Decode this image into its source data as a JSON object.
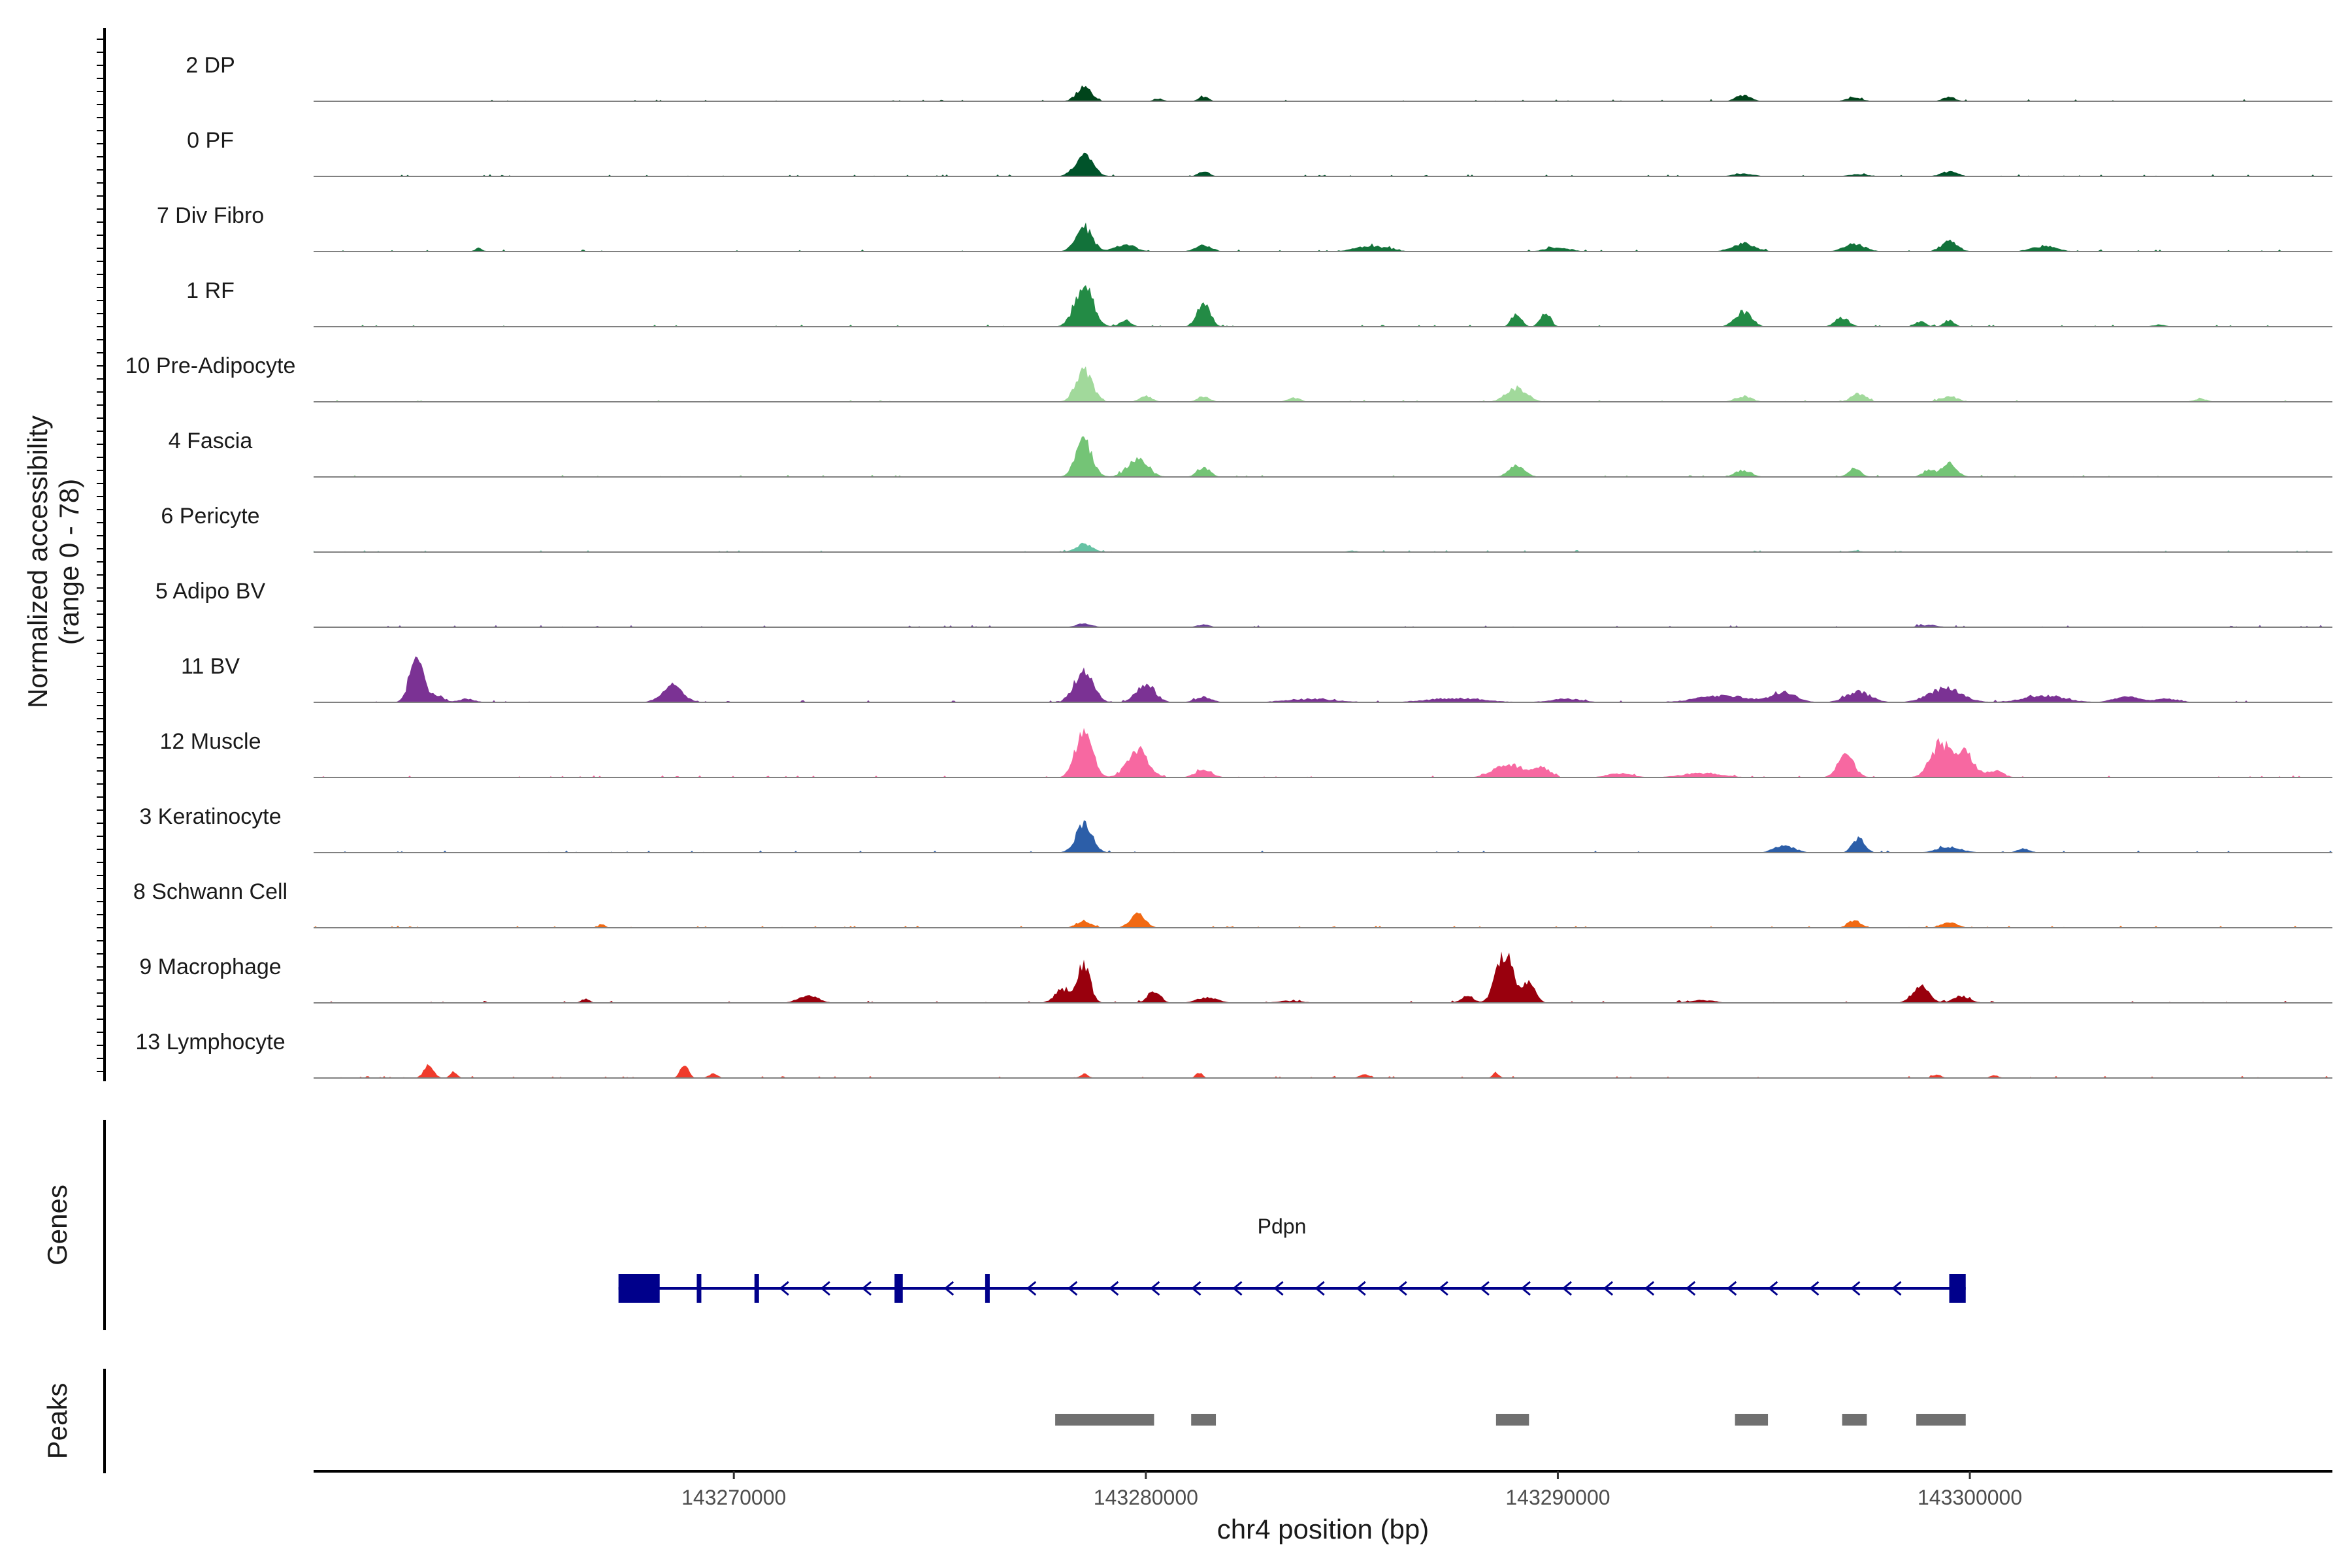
{
  "chart_data": {
    "type": "area",
    "title": "",
    "ylabel": [
      "Normalized accessibility",
      "(range 0 - 78)"
    ],
    "xlabel": "chr4 position (bp)",
    "xlim": [
      143259800,
      143308800
    ],
    "ylim": [
      0,
      78
    ],
    "x_ticks": [
      143270000,
      143280000,
      143290000,
      143300000
    ],
    "x_tick_labels": [
      "143270000",
      "143280000",
      "143290000",
      "143300000"
    ],
    "tracks": [
      {
        "name": "2 DP",
        "color": "#00441b",
        "peaks": [
          [
            143278500,
            20,
            180
          ],
          [
            143280300,
            4,
            120
          ],
          [
            143281400,
            7,
            120
          ],
          [
            143294500,
            9,
            180
          ],
          [
            143297200,
            5,
            200
          ],
          [
            143299500,
            6,
            160
          ]
        ]
      },
      {
        "name": "0 PF",
        "color": "#00532a",
        "peaks": [
          [
            143278500,
            30,
            220
          ],
          [
            143281400,
            8,
            130
          ],
          [
            143294500,
            4,
            250
          ],
          [
            143297300,
            3,
            250
          ],
          [
            143299500,
            7,
            200
          ]
        ]
      },
      {
        "name": "7 Div Fibro",
        "color": "#12723a",
        "peaks": [
          [
            143263800,
            5,
            90
          ],
          [
            143278500,
            35,
            200
          ],
          [
            143279500,
            10,
            250
          ],
          [
            143281400,
            9,
            200
          ],
          [
            143285500,
            8,
            400
          ],
          [
            143290000,
            6,
            300
          ],
          [
            143294500,
            12,
            280
          ],
          [
            143297200,
            11,
            250
          ],
          [
            143299500,
            14,
            200
          ],
          [
            143301800,
            8,
            300
          ]
        ]
      },
      {
        "name": "1 RF",
        "color": "#238b45",
        "peaks": [
          [
            143278500,
            60,
            220
          ],
          [
            143279500,
            10,
            130
          ],
          [
            143281400,
            34,
            160
          ],
          [
            143289000,
            20,
            120
          ],
          [
            143289700,
            22,
            120
          ],
          [
            143294500,
            22,
            200
          ],
          [
            143296900,
            14,
            160
          ],
          [
            143298800,
            8,
            120
          ],
          [
            143299500,
            10,
            120
          ],
          [
            143304600,
            3,
            150
          ]
        ]
      },
      {
        "name": "10 Pre-Adipocyte",
        "color": "#a1d99b",
        "peaks": [
          [
            143278500,
            45,
            200
          ],
          [
            143280000,
            8,
            150
          ],
          [
            143281400,
            8,
            150
          ],
          [
            143283600,
            6,
            150
          ],
          [
            143289000,
            20,
            250
          ],
          [
            143294500,
            8,
            200
          ],
          [
            143297300,
            12,
            180
          ],
          [
            143299500,
            8,
            200
          ],
          [
            143305600,
            5,
            150
          ]
        ]
      },
      {
        "name": "4 Fascia",
        "color": "#74c476",
        "peaks": [
          [
            143278500,
            50,
            200
          ],
          [
            143279800,
            25,
            250
          ],
          [
            143281400,
            15,
            150
          ],
          [
            143289000,
            15,
            200
          ],
          [
            143294500,
            10,
            200
          ],
          [
            143297200,
            12,
            150
          ],
          [
            143299000,
            10,
            150
          ],
          [
            143299500,
            20,
            180
          ]
        ]
      },
      {
        "name": "6 Pericyte",
        "color": "#66c2a4",
        "peaks": [
          [
            143278500,
            12,
            200
          ],
          [
            143285000,
            2,
            150
          ],
          [
            143297200,
            2,
            150
          ]
        ]
      },
      {
        "name": "5 Adipo BV",
        "color": "#6a3d9a",
        "peaks": [
          [
            143278500,
            5,
            200
          ],
          [
            143281400,
            4,
            150
          ],
          [
            143299000,
            3,
            250
          ]
        ]
      },
      {
        "name": "11 BV",
        "color": "#7b3294",
        "peaks": [
          [
            143262300,
            76,
            160
          ],
          [
            143262800,
            10,
            150
          ],
          [
            143263500,
            5,
            200
          ],
          [
            143268500,
            24,
            250
          ],
          [
            143278500,
            50,
            220
          ],
          [
            143280000,
            27,
            220
          ],
          [
            143281400,
            8,
            200
          ],
          [
            143284000,
            5,
            600
          ],
          [
            143287500,
            6,
            700
          ],
          [
            143290200,
            5,
            400
          ],
          [
            143294000,
            10,
            600
          ],
          [
            143295500,
            14,
            300
          ],
          [
            143297300,
            15,
            300
          ],
          [
            143299400,
            20,
            400
          ],
          [
            143301800,
            10,
            500
          ],
          [
            143303800,
            8,
            300
          ],
          [
            143304800,
            5,
            300
          ]
        ]
      },
      {
        "name": "12 Muscle",
        "color": "#f768a1",
        "peaks": [
          [
            143278500,
            70,
            200
          ],
          [
            143279800,
            40,
            250
          ],
          [
            143281400,
            12,
            200
          ],
          [
            143288800,
            20,
            350
          ],
          [
            143289600,
            15,
            200
          ],
          [
            143291500,
            6,
            300
          ],
          [
            143293500,
            6,
            500
          ],
          [
            143297000,
            30,
            200
          ],
          [
            143299300,
            50,
            250
          ],
          [
            143299900,
            35,
            200
          ],
          [
            143300600,
            10,
            200
          ]
        ]
      },
      {
        "name": "3 Keratinocyte",
        "color": "#2c5ea8",
        "peaks": [
          [
            143278500,
            40,
            200
          ],
          [
            143295500,
            10,
            250
          ],
          [
            143297300,
            20,
            150
          ],
          [
            143299500,
            8,
            300
          ],
          [
            143301300,
            6,
            150
          ]
        ]
      },
      {
        "name": "8 Schwann Cell",
        "color": "#f16913",
        "peaks": [
          [
            143278500,
            10,
            180
          ],
          [
            143279800,
            20,
            180
          ],
          [
            143266800,
            6,
            80
          ],
          [
            143297200,
            11,
            150
          ],
          [
            143299500,
            7,
            200
          ]
        ]
      },
      {
        "name": "9 Macrophage",
        "color": "#99000d",
        "peaks": [
          [
            143266400,
            6,
            100
          ],
          [
            143271800,
            10,
            250
          ],
          [
            143278000,
            20,
            200
          ],
          [
            143278500,
            55,
            150
          ],
          [
            143280200,
            18,
            150
          ],
          [
            143281500,
            8,
            250
          ],
          [
            143287800,
            10,
            150
          ],
          [
            143288700,
            75,
            200
          ],
          [
            143289300,
            30,
            150
          ],
          [
            143298800,
            24,
            200
          ],
          [
            143299800,
            10,
            200
          ],
          [
            143283500,
            3,
            300
          ],
          [
            143293500,
            4,
            300
          ]
        ]
      },
      {
        "name": "13 Lymphocyte",
        "color": "#ef3b2c",
        "peaks": [
          [
            143262600,
            18,
            120
          ],
          [
            143263200,
            10,
            80
          ],
          [
            143268800,
            18,
            100
          ],
          [
            143269500,
            7,
            100
          ],
          [
            143278500,
            6,
            100
          ],
          [
            143281300,
            8,
            80
          ],
          [
            143285300,
            5,
            120
          ],
          [
            143288500,
            7,
            80
          ],
          [
            143299200,
            5,
            100
          ],
          [
            143300600,
            4,
            100
          ]
        ]
      }
    ],
    "genes_label": "Genes",
    "gene": {
      "name": "Pdpn",
      "strand": "-",
      "start": 143267200,
      "end": 143299900,
      "exons": [
        [
          143267200,
          143268200
        ],
        [
          143269100,
          143269200
        ],
        [
          143270500,
          143270550
        ],
        [
          143273900,
          143274100
        ],
        [
          143276100,
          143276200
        ],
        [
          143299500,
          143299900
        ]
      ]
    },
    "peaks_label": "Peaks",
    "peak_regions": [
      [
        143277800,
        143280200
      ],
      [
        143281100,
        143281700
      ],
      [
        143288500,
        143289300
      ],
      [
        143294300,
        143295100
      ],
      [
        143296900,
        143297500
      ],
      [
        143298700,
        143299900
      ]
    ],
    "track_axis_range": [
      0,
      78
    ]
  }
}
